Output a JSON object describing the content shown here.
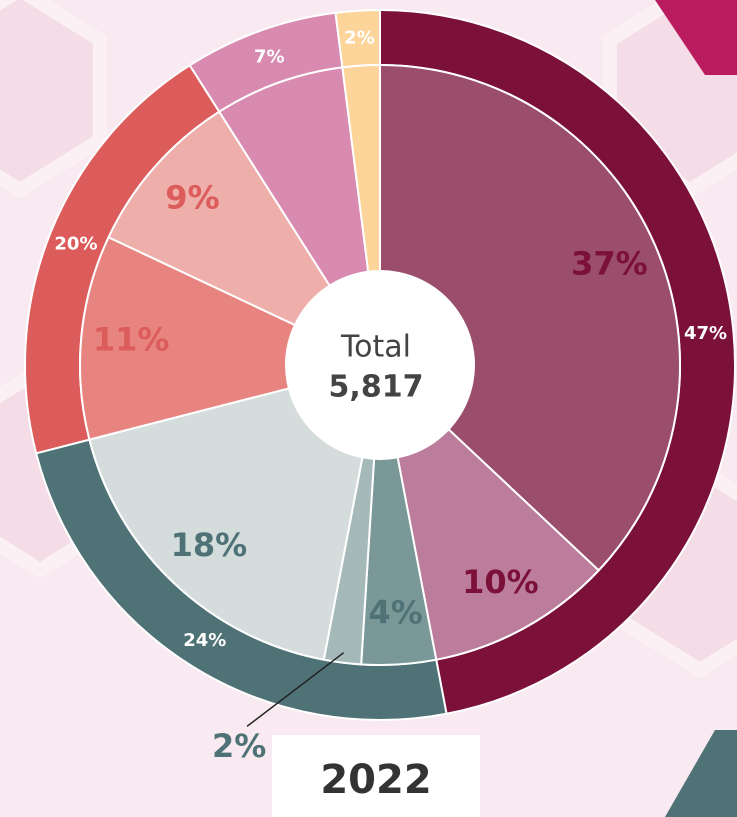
{
  "chart_data": {
    "type": "nested-donut",
    "title": "2022",
    "center_label": "Total",
    "center_value": "5,817",
    "series": [
      {
        "ring": "outer",
        "values": [
          47,
          24,
          20,
          7,
          2
        ],
        "value_labels": [
          "47%",
          "24%",
          "20%",
          "7%",
          "2%"
        ],
        "colors": [
          "#7b1038",
          "#4f7276",
          "#dc5b5b",
          "#d98ab0",
          "#fdd59a"
        ],
        "label_color": "#ffffff"
      },
      {
        "ring": "inner",
        "values": [
          37,
          10,
          4,
          2,
          18,
          11,
          9,
          7,
          2
        ],
        "value_labels": [
          "37%",
          "10%",
          "4%",
          "2%",
          "18%",
          "11%",
          "9%",
          null,
          null
        ],
        "colors": [
          "#9a4e6c",
          "#bc7d9c",
          "#7a9898",
          "#a5b9b9",
          "#d4dcdc",
          "#e88480",
          "#eeaeaa",
          "#d98ab0",
          "#fdd59a"
        ],
        "label_colors": [
          "#7b1038",
          "#7b1038",
          "#4f7276",
          "#4f7276",
          "#4f7276",
          "#dc5b5b",
          "#dc5b5b",
          null,
          null
        ]
      }
    ]
  }
}
